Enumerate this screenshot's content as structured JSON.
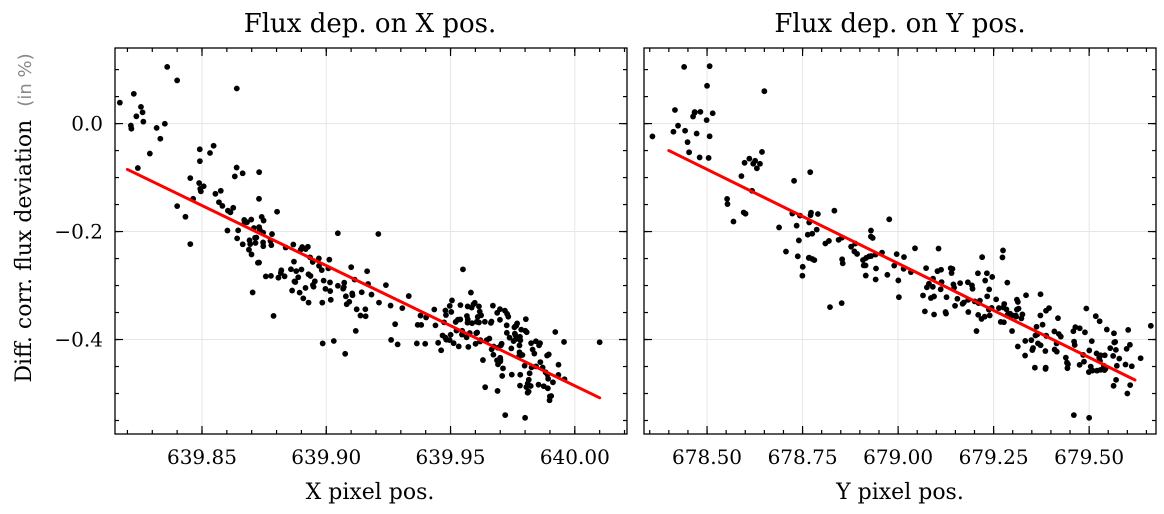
{
  "figure": {
    "ylabel": "Diff. corr. flux deviation",
    "ylabel_unit": "(in %)"
  },
  "chart_data": [
    {
      "type": "scatter",
      "title": "Flux dep. on X pos.",
      "xlabel": "X pixel pos.",
      "ylabel": "Diff. corr. flux deviation (in %)",
      "xlim": [
        639.815,
        640.021
      ],
      "ylim": [
        -0.575,
        0.14
      ],
      "xticks": [
        639.85,
        639.9,
        639.95,
        640.0
      ],
      "xtick_labels": [
        "639.85",
        "639.90",
        "639.95",
        "640.00"
      ],
      "yticks": [
        0.0,
        -0.2,
        -0.4
      ],
      "ytick_labels": [
        "0.0",
        "−0.2",
        "−0.4"
      ],
      "grid": true,
      "point_color": "#000000",
      "fit_line": {
        "x": [
          639.82,
          640.01
        ],
        "y": [
          -0.085,
          -0.508
        ],
        "color": "#ff0000"
      },
      "cluster_spec": [
        {
          "x": 639.825,
          "y": -0.005,
          "n": 14,
          "sx": 0.006,
          "sy": 0.045,
          "seed": 1
        },
        {
          "x": 639.85,
          "y": -0.11,
          "n": 16,
          "sx": 0.006,
          "sy": 0.045,
          "seed": 2
        },
        {
          "x": 639.865,
          "y": -0.19,
          "n": 20,
          "sx": 0.006,
          "sy": 0.04,
          "seed": 3
        },
        {
          "x": 639.88,
          "y": -0.25,
          "n": 28,
          "sx": 0.007,
          "sy": 0.04,
          "seed": 4
        },
        {
          "x": 639.895,
          "y": -0.28,
          "n": 30,
          "sx": 0.007,
          "sy": 0.04,
          "seed": 5
        },
        {
          "x": 639.91,
          "y": -0.32,
          "n": 28,
          "sx": 0.007,
          "sy": 0.04,
          "seed": 6
        },
        {
          "x": 639.93,
          "y": -0.36,
          "n": 14,
          "sx": 0.008,
          "sy": 0.03,
          "seed": 7
        },
        {
          "x": 639.955,
          "y": -0.37,
          "n": 45,
          "sx": 0.006,
          "sy": 0.035,
          "seed": 8
        },
        {
          "x": 639.97,
          "y": -0.41,
          "n": 50,
          "sx": 0.006,
          "sy": 0.04,
          "seed": 9
        },
        {
          "x": 639.985,
          "y": -0.45,
          "n": 40,
          "sx": 0.006,
          "sy": 0.035,
          "seed": 10
        }
      ],
      "points": [
        {
          "x": 639.836,
          "y": 0.105
        },
        {
          "x": 639.84,
          "y": 0.08
        },
        {
          "x": 639.864,
          "y": 0.065
        },
        {
          "x": 639.873,
          "y": -0.09
        },
        {
          "x": 639.955,
          "y": -0.27
        },
        {
          "x": 639.972,
          "y": -0.54
        },
        {
          "x": 639.98,
          "y": -0.545
        },
        {
          "x": 640.01,
          "y": -0.405
        }
      ]
    },
    {
      "type": "scatter",
      "title": "Flux dep. on Y pos.",
      "xlabel": "Y pixel pos.",
      "ylabel": "",
      "xlim": [
        678.335,
        679.675
      ],
      "ylim": [
        -0.575,
        0.14
      ],
      "xticks": [
        678.5,
        678.75,
        679.0,
        679.25,
        679.5
      ],
      "xtick_labels": [
        "678.50",
        "678.75",
        "679.00",
        "679.25",
        "679.50"
      ],
      "yticks": [
        0.0,
        -0.2,
        -0.4
      ],
      "ytick_labels": [
        "",
        "",
        ""
      ],
      "grid": true,
      "point_color": "#000000",
      "fit_line": {
        "x": [
          678.4,
          679.62
        ],
        "y": [
          -0.05,
          -0.475
        ],
        "color": "#ff0000"
      },
      "cluster_spec": [
        {
          "x": 678.47,
          "y": 0.0,
          "n": 18,
          "sx": 0.05,
          "sy": 0.045,
          "seed": 11
        },
        {
          "x": 678.6,
          "y": -0.1,
          "n": 14,
          "sx": 0.04,
          "sy": 0.045,
          "seed": 12
        },
        {
          "x": 678.75,
          "y": -0.2,
          "n": 24,
          "sx": 0.05,
          "sy": 0.04,
          "seed": 13
        },
        {
          "x": 678.92,
          "y": -0.25,
          "n": 30,
          "sx": 0.06,
          "sy": 0.04,
          "seed": 14
        },
        {
          "x": 679.1,
          "y": -0.3,
          "n": 35,
          "sx": 0.06,
          "sy": 0.035,
          "seed": 15
        },
        {
          "x": 679.25,
          "y": -0.34,
          "n": 38,
          "sx": 0.05,
          "sy": 0.035,
          "seed": 16
        },
        {
          "x": 679.4,
          "y": -0.4,
          "n": 45,
          "sx": 0.05,
          "sy": 0.035,
          "seed": 17
        },
        {
          "x": 679.55,
          "y": -0.44,
          "n": 40,
          "sx": 0.04,
          "sy": 0.035,
          "seed": 18
        }
      ],
      "points": [
        {
          "x": 678.44,
          "y": 0.105
        },
        {
          "x": 678.5,
          "y": 0.07
        },
        {
          "x": 678.65,
          "y": 0.06
        },
        {
          "x": 678.77,
          "y": -0.09
        },
        {
          "x": 679.5,
          "y": -0.545
        },
        {
          "x": 679.46,
          "y": -0.54
        },
        {
          "x": 679.6,
          "y": -0.5
        }
      ]
    }
  ]
}
